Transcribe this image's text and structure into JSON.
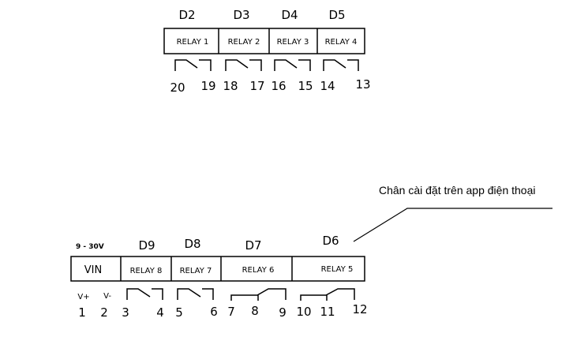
{
  "top_module": {
    "pins": [
      "D2",
      "D3",
      "D4",
      "D5"
    ],
    "relays": [
      "RELAY 1",
      "RELAY 2",
      "RELAY 3",
      "RELAY 4"
    ],
    "terminals": [
      "20",
      "19",
      "18",
      "17",
      "16",
      "15",
      "14",
      "13"
    ]
  },
  "bottom_module": {
    "voltage": "9 - 30V",
    "vin": "VIN",
    "pins": [
      "D9",
      "D8",
      "D7",
      "D6"
    ],
    "relays": [
      "RELAY 8",
      "RELAY 7",
      "RELAY 6",
      "RELAY 5"
    ],
    "power_labels": [
      "V+",
      "V-"
    ],
    "terminals": [
      "1",
      "2",
      "3",
      "4",
      "5",
      "6",
      "7",
      "8",
      "9",
      "10",
      "11",
      "12"
    ]
  },
  "annotation": "Chân cài đặt trên app điện thoại"
}
